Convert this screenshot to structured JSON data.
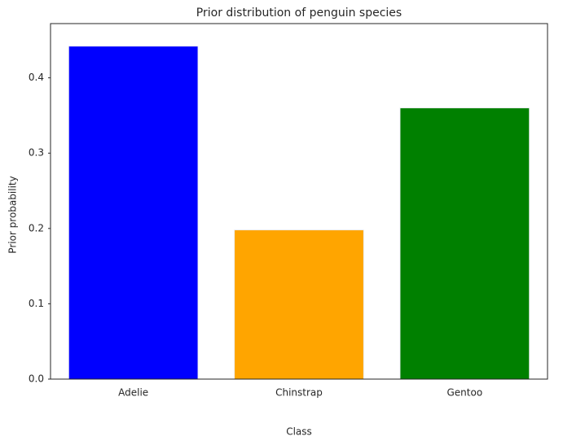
{
  "chart_data": {
    "type": "bar",
    "title": "Prior distribution of penguin species",
    "x_label": "Class",
    "y_label": "Prior probability",
    "categories": [
      "Adelie",
      "Chinstrap",
      "Gentoo"
    ],
    "values": [
      0.442,
      0.198,
      0.36
    ],
    "colors": [
      "#0000ff",
      "#ffa500",
      "#008000"
    ],
    "ylim": [
      0,
      0.472
    ],
    "yticks": [
      {
        "value": 0,
        "label": "0.0"
      },
      0.1,
      0.2,
      0.3,
      0.4
    ],
    "grid": false
  }
}
